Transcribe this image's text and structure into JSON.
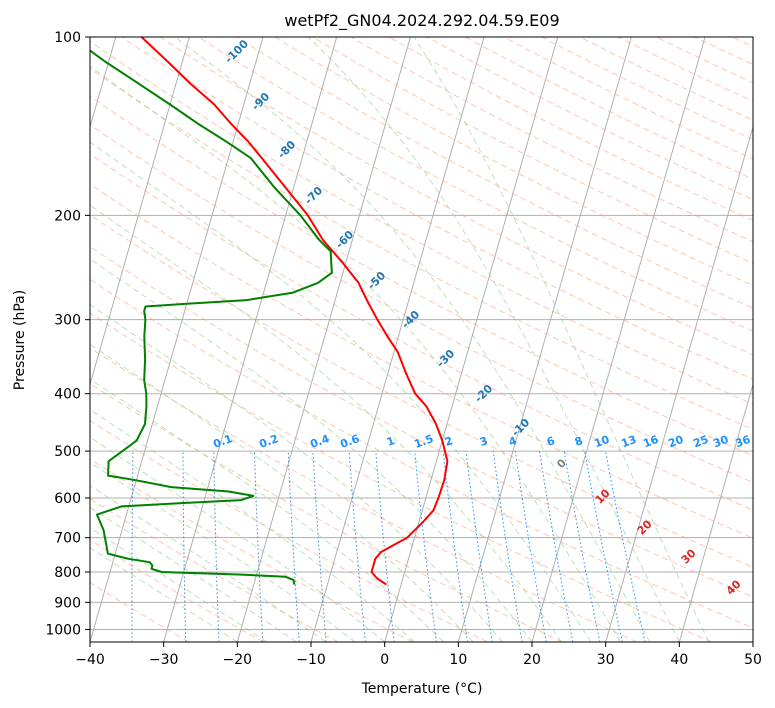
{
  "chart_data": {
    "type": "line",
    "subtype": "skew-t log-p diagram",
    "title": "wetPf2_GN04.2024.292.04.59.E09",
    "xlabel": "Temperature (°C)",
    "ylabel": "Pressure (hPa)",
    "xlim": [
      -40,
      50
    ],
    "ylim": [
      1050,
      100
    ],
    "yscale": "log",
    "grid": true,
    "x_ticks": [
      -40,
      -30,
      -20,
      -10,
      0,
      10,
      20,
      30,
      40,
      50
    ],
    "x_tick_labels": [
      "−40",
      "−30",
      "−20",
      "−10",
      "0",
      "10",
      "20",
      "30",
      "40",
      "50"
    ],
    "y_ticks": [
      100,
      200,
      300,
      400,
      500,
      600,
      700,
      800,
      900,
      1000
    ],
    "y_tick_labels": [
      "100",
      "200",
      "300",
      "400",
      "500",
      "600",
      "700",
      "800",
      "900",
      "1000"
    ],
    "colors": {
      "temperature": "#ff0000",
      "dewpoint": "#008000",
      "isotherm": "#b0b0b0",
      "dry_adiabat": "#ffa07a",
      "moist_adiabat": "#8fcf8f",
      "mixing_ratio": "#1e90ff",
      "isotherm_label": "#1f77b4",
      "wetbulb_label": "#d62728",
      "zero_label": "#808080"
    },
    "series": [
      {
        "name": "Temperature",
        "points": [
          [
            840,
            -2.0
          ],
          [
            820,
            -3.5
          ],
          [
            800,
            -4.5
          ],
          [
            780,
            -4.5
          ],
          [
            760,
            -4.5
          ],
          [
            740,
            -4.0
          ],
          [
            720,
            -2.5
          ],
          [
            700,
            -1.0
          ],
          [
            660,
            0.5
          ],
          [
            630,
            1.5
          ],
          [
            600,
            1.7
          ],
          [
            560,
            1.8
          ],
          [
            520,
            1.5
          ],
          [
            480,
            0.0
          ],
          [
            450,
            -1.5
          ],
          [
            420,
            -3.5
          ],
          [
            400,
            -5.5
          ],
          [
            370,
            -7.5
          ],
          [
            340,
            -9.5
          ],
          [
            320,
            -11.5
          ],
          [
            300,
            -13.5
          ],
          [
            280,
            -15.5
          ],
          [
            260,
            -17.5
          ],
          [
            240,
            -20.5
          ],
          [
            220,
            -24.0
          ],
          [
            200,
            -27.0
          ],
          [
            180,
            -31.0
          ],
          [
            160,
            -35.5
          ],
          [
            150,
            -38.0
          ],
          [
            140,
            -41.0
          ],
          [
            130,
            -44.0
          ],
          [
            120,
            -48.0
          ],
          [
            110,
            -52.0
          ],
          [
            100,
            -56.5
          ]
        ]
      },
      {
        "name": "Dewpoint",
        "points": [
          [
            840,
            -14.5
          ],
          [
            825,
            -14.8
          ],
          [
            815,
            -16.0
          ],
          [
            808,
            -22.0
          ],
          [
            800,
            -33.0
          ],
          [
            790,
            -34.5
          ],
          [
            780,
            -34.5
          ],
          [
            770,
            -35.0
          ],
          [
            760,
            -38.0
          ],
          [
            745,
            -41.0
          ],
          [
            680,
            -42.5
          ],
          [
            640,
            -44.0
          ],
          [
            620,
            -41.0
          ],
          [
            612,
            -33.0
          ],
          [
            605,
            -25.0
          ],
          [
            595,
            -23.5
          ],
          [
            585,
            -27.0
          ],
          [
            575,
            -35.0
          ],
          [
            560,
            -40.0
          ],
          [
            550,
            -44.0
          ],
          [
            520,
            -44.5
          ],
          [
            500,
            -43.0
          ],
          [
            480,
            -41.5
          ],
          [
            450,
            -41.0
          ],
          [
            420,
            -41.5
          ],
          [
            400,
            -42.0
          ],
          [
            380,
            -42.8
          ],
          [
            350,
            -43.5
          ],
          [
            320,
            -44.5
          ],
          [
            300,
            -45.0
          ],
          [
            290,
            -45.5
          ],
          [
            285,
            -45.5
          ],
          [
            282,
            -40.0
          ],
          [
            278,
            -32.0
          ],
          [
            270,
            -26.0
          ],
          [
            260,
            -23.0
          ],
          [
            250,
            -21.5
          ],
          [
            240,
            -22.0
          ],
          [
            230,
            -22.5
          ],
          [
            220,
            -24.5
          ],
          [
            200,
            -28.0
          ],
          [
            180,
            -32.5
          ],
          [
            160,
            -37.0
          ],
          [
            150,
            -41.0
          ],
          [
            140,
            -45.5
          ],
          [
            130,
            -50.0
          ],
          [
            120,
            -55.0
          ],
          [
            110,
            -60.5
          ],
          [
            100,
            -66.0
          ]
        ]
      }
    ],
    "annotations": {
      "isotherm_labels": [
        "-100",
        "-90",
        "-80",
        "-70",
        "-60",
        "-50",
        "-40",
        "-30",
        "-20",
        "-10"
      ],
      "mixing_ratio_labels": [
        "0.1",
        "0.2",
        "0.4",
        "0.6",
        "1",
        "1.5",
        "2",
        "3",
        "4",
        "6",
        "8",
        "10",
        "13",
        "16",
        "20",
        "25",
        "30",
        "36"
      ],
      "zero_label": "0",
      "wetbulb_labels": [
        "10",
        "20",
        "30",
        "40"
      ]
    }
  }
}
